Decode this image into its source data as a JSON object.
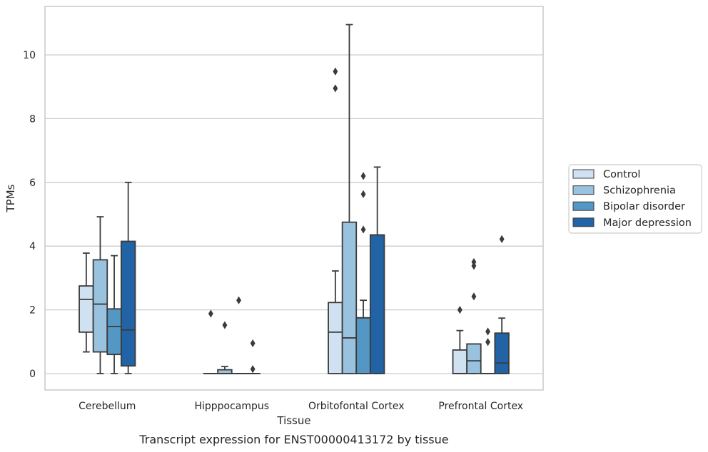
{
  "chart_data": {
    "type": "box",
    "title": "",
    "xlabel": "Tissue",
    "ylabel": "TPMs",
    "caption": "Transcript expression for ENST00000413172 by tissue",
    "ylim": [
      -0.5,
      11.5
    ],
    "yticks": [
      0,
      2,
      4,
      6,
      8,
      10
    ],
    "grid": "horizontal",
    "legend_position": "right",
    "categories": [
      "Cerebellum",
      "Hipppocampus",
      "Orbitofontal Cortex",
      "Prefrontal Cortex"
    ],
    "series": [
      {
        "name": "Control",
        "color": "#d0e1f1",
        "boxes": [
          {
            "whislo": 0.68,
            "q1": 1.3,
            "med": 2.33,
            "q3": 2.75,
            "whishi": 3.78,
            "fliers": []
          },
          {
            "whislo": 0,
            "q1": 0,
            "med": 0,
            "q3": 0,
            "whishi": 0,
            "fliers": [
              1.88
            ]
          },
          {
            "whislo": 0,
            "q1": 0,
            "med": 1.3,
            "q3": 2.23,
            "whishi": 3.22,
            "fliers": [
              8.95,
              9.48
            ]
          },
          {
            "whislo": 0,
            "q1": 0,
            "med": 0,
            "q3": 0.74,
            "whishi": 1.35,
            "fliers": [
              2.0
            ]
          }
        ]
      },
      {
        "name": "Schizophrenia",
        "color": "#99c2de",
        "boxes": [
          {
            "whislo": 0,
            "q1": 0.68,
            "med": 2.18,
            "q3": 3.57,
            "whishi": 4.92,
            "fliers": []
          },
          {
            "whislo": 0,
            "q1": 0,
            "med": 0,
            "q3": 0.12,
            "whishi": 0.22,
            "fliers": [
              1.52
            ]
          },
          {
            "whislo": 0,
            "q1": 0,
            "med": 1.12,
            "q3": 4.75,
            "whishi": 10.95,
            "fliers": []
          },
          {
            "whislo": 0,
            "q1": 0,
            "med": 0.4,
            "q3": 0.93,
            "whishi": 0.93,
            "fliers": [
              2.42,
              3.38,
              3.5
            ]
          }
        ]
      },
      {
        "name": "Bipolar disorder",
        "color": "#5497c5",
        "boxes": [
          {
            "whislo": 0,
            "q1": 0.6,
            "med": 1.48,
            "q3": 2.03,
            "whishi": 3.7,
            "fliers": []
          },
          {
            "whislo": 0,
            "q1": 0,
            "med": 0,
            "q3": 0,
            "whishi": 0,
            "fliers": [
              2.3
            ]
          },
          {
            "whislo": 0,
            "q1": 0,
            "med": 1.75,
            "q3": 1.75,
            "whishi": 2.3,
            "fliers": [
              4.52,
              5.63,
              6.2
            ]
          },
          {
            "whislo": 0,
            "q1": 0,
            "med": 0,
            "q3": 0,
            "whishi": 0,
            "fliers": [
              0.99,
              1.32
            ]
          }
        ]
      },
      {
        "name": "Major depression",
        "color": "#2163a4",
        "boxes": [
          {
            "whislo": 0,
            "q1": 0.24,
            "med": 1.37,
            "q3": 4.15,
            "whishi": 6.0,
            "fliers": []
          },
          {
            "whislo": 0,
            "q1": 0,
            "med": 0,
            "q3": 0,
            "whishi": 0,
            "fliers": [
              0.14,
              0.95
            ]
          },
          {
            "whislo": 0,
            "q1": 0,
            "med": 4.35,
            "q3": 4.35,
            "whishi": 6.48,
            "fliers": []
          },
          {
            "whislo": 0,
            "q1": 0,
            "med": 0.33,
            "q3": 1.27,
            "whishi": 1.74,
            "fliers": [
              4.22
            ]
          }
        ]
      }
    ]
  }
}
